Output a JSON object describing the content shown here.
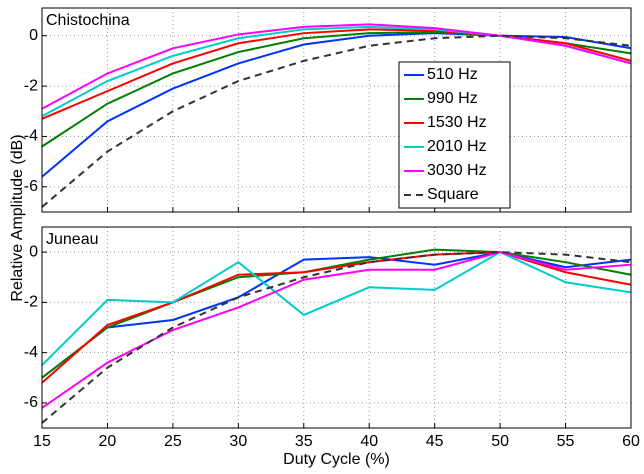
{
  "ylabel": "Relative Amplitude (dB)",
  "chart_data": [
    {
      "type": "line",
      "panel_label": "Chistochina",
      "x": [
        15,
        20,
        25,
        30,
        35,
        40,
        45,
        50,
        55,
        60
      ],
      "xlim": [
        15,
        60
      ],
      "xticks": [
        15,
        20,
        25,
        30,
        35,
        40,
        45,
        50,
        55,
        60
      ],
      "ylim": [
        -7,
        1.1
      ],
      "yticks": [
        -6,
        -4,
        -2,
        0
      ],
      "grid": true,
      "legend": "right",
      "series": [
        {
          "name": "510 Hz",
          "color": "#0033ff",
          "values": [
            -5.6,
            -3.4,
            -2.1,
            -1.1,
            -0.35,
            0.0,
            0.1,
            0,
            -0.05,
            -0.5
          ]
        },
        {
          "name": "990 Hz",
          "color": "#008000",
          "values": [
            -4.4,
            -2.7,
            -1.5,
            -0.65,
            -0.1,
            0.1,
            0.15,
            0,
            -0.3,
            -0.7
          ]
        },
        {
          "name": "1530 Hz",
          "color": "#ff0000",
          "values": [
            -3.3,
            -2.2,
            -1.1,
            -0.3,
            0.1,
            0.25,
            0.2,
            0,
            -0.3,
            -1.0
          ]
        },
        {
          "name": "2010 Hz",
          "color": "#00cccc",
          "values": [
            -3.2,
            -1.8,
            -0.8,
            -0.1,
            0.25,
            0.35,
            0.25,
            0,
            -0.4,
            -1.1
          ]
        },
        {
          "name": "3030 Hz",
          "color": "#ff00ff",
          "values": [
            -2.9,
            -1.5,
            -0.5,
            0.05,
            0.35,
            0.45,
            0.3,
            0,
            -0.4,
            -1.1
          ]
        },
        {
          "name": "Square",
          "color": "#333333",
          "dashed": true,
          "values": [
            -6.8,
            -4.6,
            -3.0,
            -1.8,
            -1.0,
            -0.4,
            -0.1,
            0,
            -0.1,
            -0.4
          ]
        }
      ]
    },
    {
      "type": "line",
      "panel_label": "Juneau",
      "xlabel": "Duty Cycle (%)",
      "x": [
        15,
        20,
        25,
        30,
        35,
        40,
        45,
        50,
        55,
        60
      ],
      "xlim": [
        15,
        60
      ],
      "xticks": [
        15,
        20,
        25,
        30,
        35,
        40,
        45,
        50,
        55,
        60
      ],
      "ylim": [
        -7,
        1
      ],
      "yticks": [
        -6,
        -4,
        -2,
        0
      ],
      "grid": true,
      "series": [
        {
          "name": "510 Hz",
          "color": "#0033ff",
          "values": [
            -5.0,
            -3.0,
            -2.7,
            -1.8,
            -0.3,
            -0.2,
            -0.5,
            0,
            -0.6,
            -0.3
          ]
        },
        {
          "name": "990 Hz",
          "color": "#008000",
          "values": [
            -5.0,
            -3.0,
            -2.0,
            -1.0,
            -0.8,
            -0.3,
            0.1,
            0,
            -0.4,
            -0.9
          ]
        },
        {
          "name": "1530 Hz",
          "color": "#ff0000",
          "values": [
            -5.2,
            -2.9,
            -2.0,
            -0.9,
            -0.8,
            -0.4,
            -0.1,
            0,
            -0.8,
            -1.3
          ]
        },
        {
          "name": "2010 Hz",
          "color": "#00cccc",
          "values": [
            -4.5,
            -1.9,
            -2.0,
            -0.4,
            -2.5,
            -1.4,
            -1.5,
            0,
            -1.2,
            -1.6
          ]
        },
        {
          "name": "3030 Hz",
          "color": "#ff00ff",
          "values": [
            -6.2,
            -4.4,
            -3.1,
            -2.2,
            -1.1,
            -0.7,
            -0.7,
            0,
            -0.7,
            -0.5
          ]
        },
        {
          "name": "Square",
          "color": "#333333",
          "dashed": true,
          "values": [
            -6.8,
            -4.6,
            -3.0,
            -1.8,
            -1.0,
            -0.4,
            -0.1,
            0,
            -0.1,
            -0.4
          ]
        }
      ]
    }
  ]
}
